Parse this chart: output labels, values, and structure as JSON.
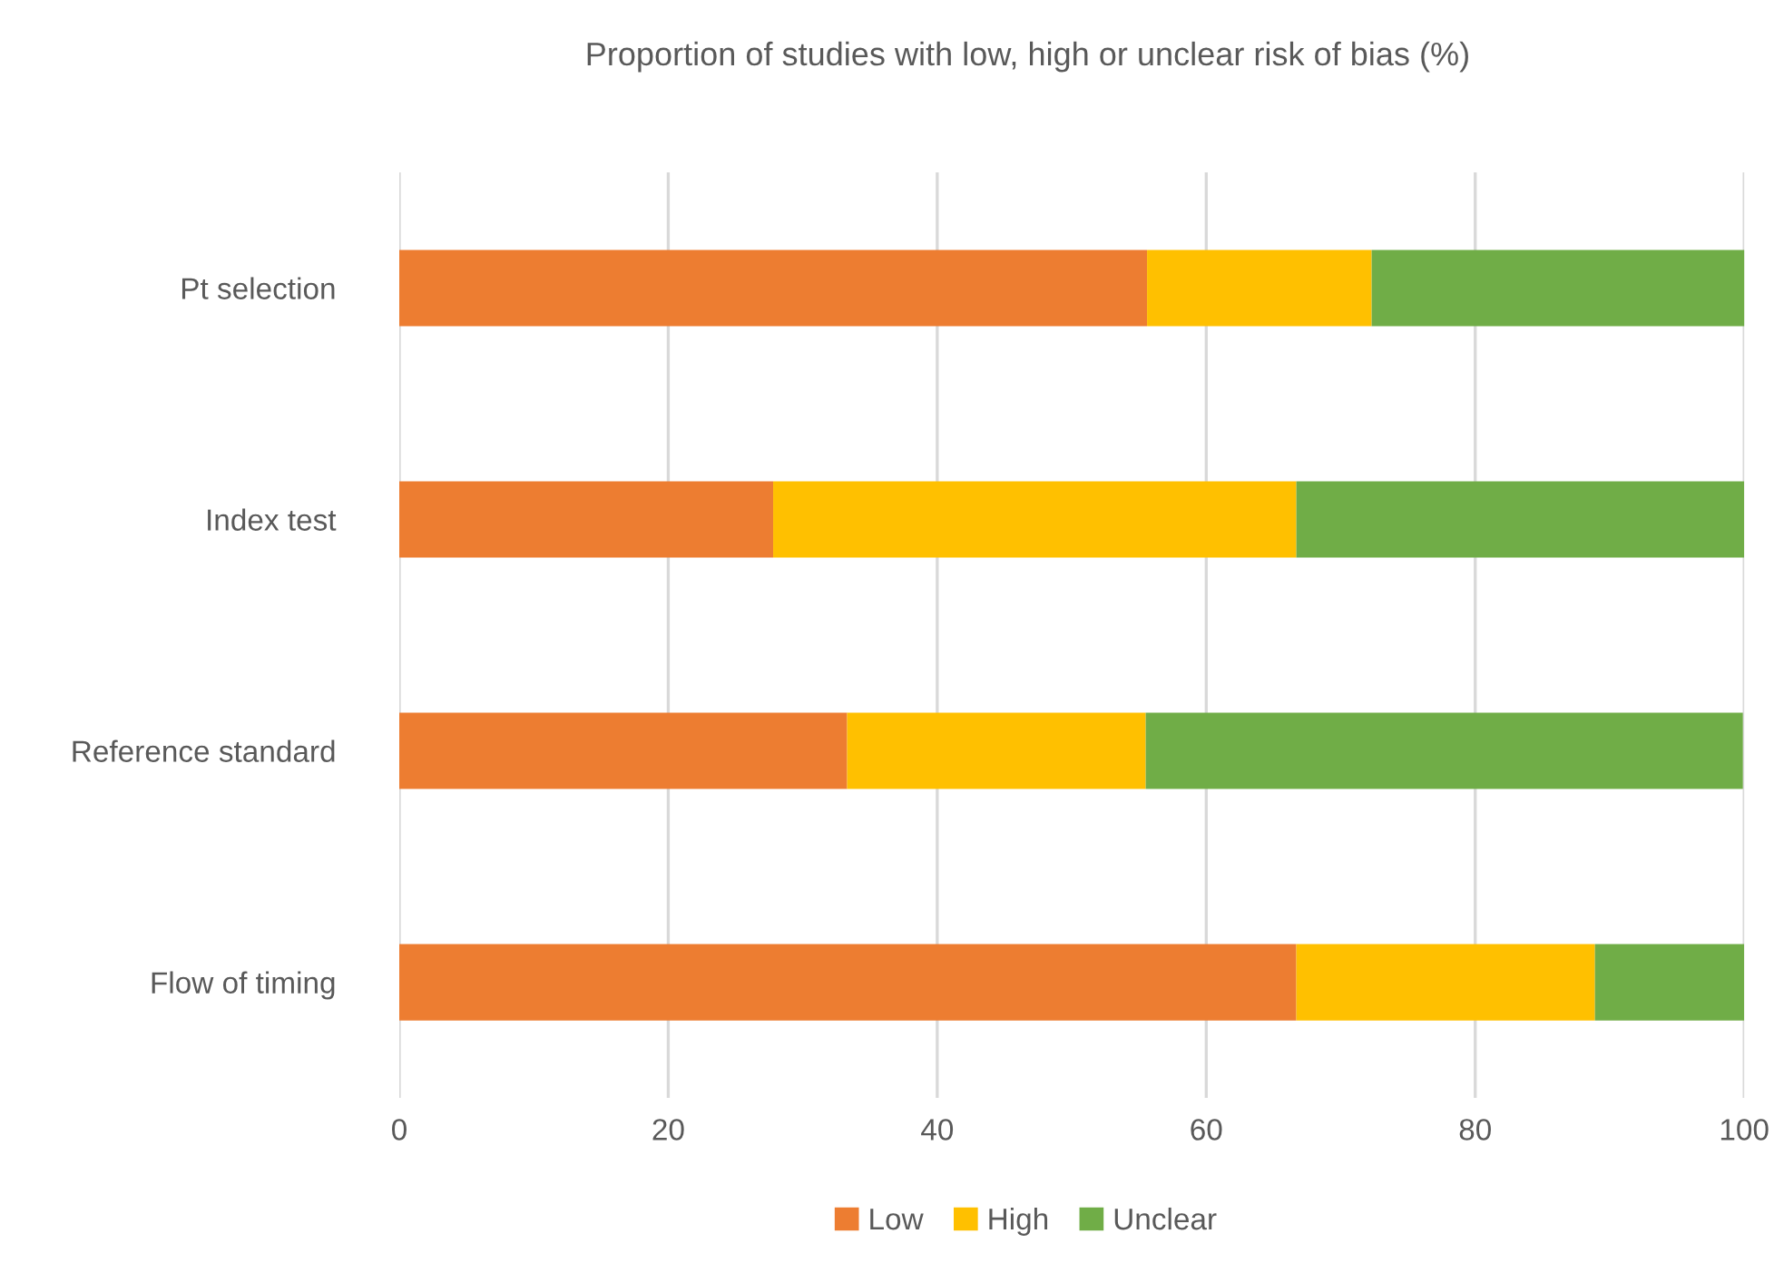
{
  "chart_data": {
    "type": "bar",
    "orientation": "horizontal",
    "stacked": true,
    "title": "Proportion of studies with low, high or unclear risk of bias (%)",
    "categories": [
      "Pt selection",
      "Index test",
      "Reference standard",
      "Flow of timing"
    ],
    "series": [
      {
        "name": "Low",
        "color": "#ed7d31",
        "values": [
          55.6,
          27.8,
          33.3,
          66.7
        ]
      },
      {
        "name": "High",
        "color": "#ffc000",
        "values": [
          16.7,
          38.9,
          22.2,
          22.2
        ]
      },
      {
        "name": "Unclear",
        "color": "#70ad47",
        "values": [
          27.8,
          33.3,
          44.4,
          11.1
        ]
      }
    ],
    "xlim": [
      0,
      100
    ],
    "xticks": [
      0,
      20,
      40,
      60,
      80,
      100
    ],
    "grid": "x",
    "legend": "bottom"
  }
}
